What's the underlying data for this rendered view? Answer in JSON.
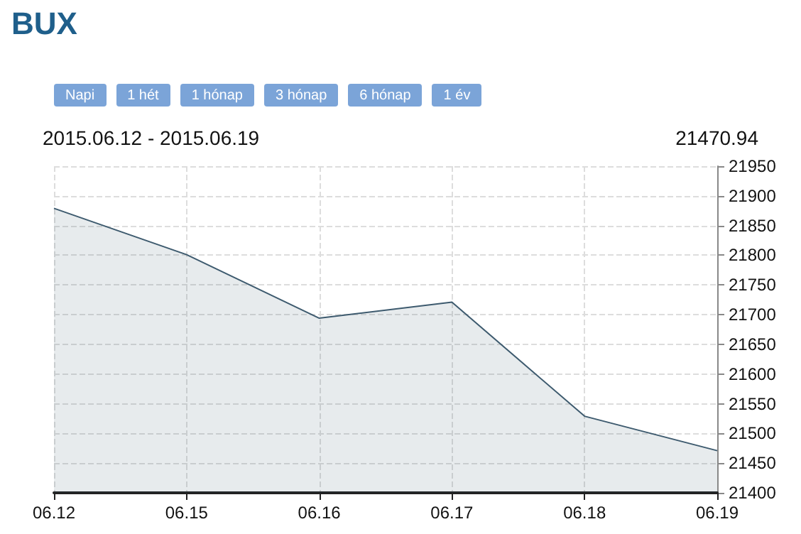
{
  "chart_data": {
    "type": "area",
    "title": "BUX",
    "subtitle": "2015.06.12 - 2015.06.19",
    "annotations": [
      "Napi",
      "1 hét",
      "1 hónap",
      "3 hónap",
      "6 hónap",
      "1 év",
      "21470.94"
    ],
    "categories": [
      "06.12",
      "06.15",
      "06.16",
      "06.17",
      "06.18",
      "06.19"
    ],
    "series": [
      {
        "color": "#3d5a6e",
        "values": [
          21879,
          21801,
          21694,
          21721,
          21529,
          21471
        ]
      }
    ],
    "ylim": [
      21400,
      21950
    ],
    "yticks": [
      21400,
      21450,
      21500,
      21550,
      21600,
      21650,
      21700,
      21750,
      21800,
      21850,
      21900,
      21950
    ],
    "grid": true,
    "marker": "none",
    "line_style": "solid"
  }
}
